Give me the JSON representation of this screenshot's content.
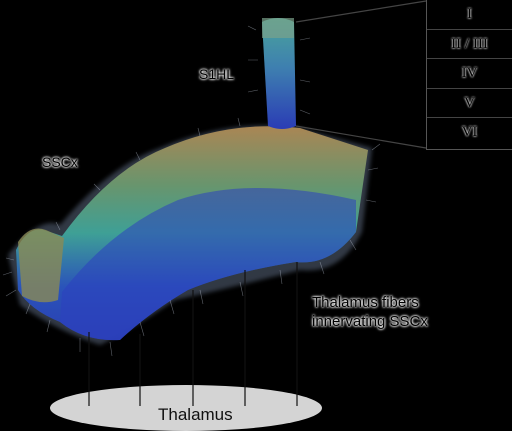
{
  "labels": {
    "s1hl": "S1HL",
    "ssc": "SSCx",
    "fibers_line1": "Thalamus fibers",
    "fibers_line2": "innervating SSCx",
    "thalamus": "Thalamus"
  },
  "cortical_layers": [
    "I",
    "II / III",
    "IV",
    "V",
    "VI"
  ],
  "colors": {
    "background": "#000000",
    "thalamus_ellipse": "#d4d4d4",
    "layer_top": "#b08a55",
    "layer_mid": "#3fa59a",
    "layer_deep": "#2a3fb8"
  }
}
